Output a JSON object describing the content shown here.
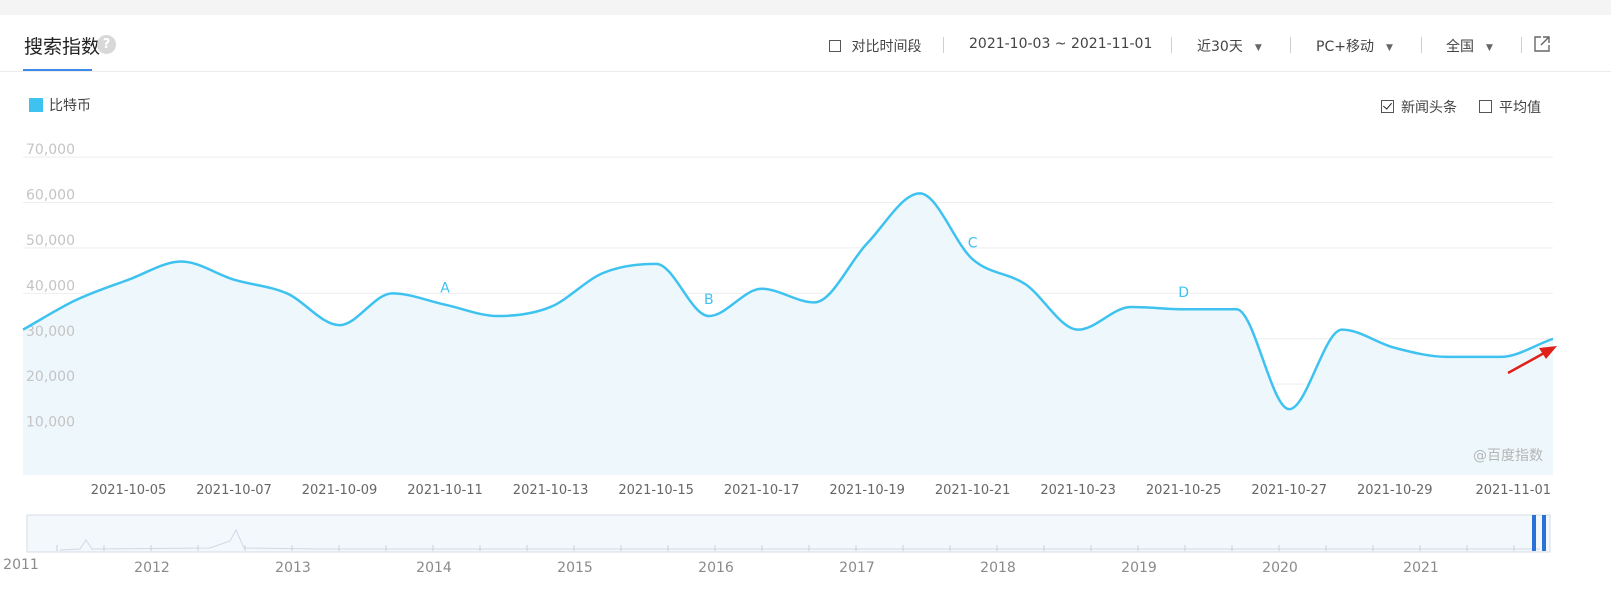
{
  "header": {
    "title": "搜索指数",
    "help_icon": "?",
    "compare_label": "对比时间段",
    "date_range": "2021-10-03 ~ 2021-11-01",
    "period_select": "近30天",
    "device_select": "PC+移动",
    "region_select": "全国"
  },
  "options": {
    "news_label": "新闻头条",
    "news_checked": true,
    "average_label": "平均值",
    "average_checked": false
  },
  "watermark": "@百度指数",
  "colors": {
    "series": "#3ec2f0",
    "accent": "#3f8be9",
    "arrow": "#e0201b"
  },
  "chart_data": {
    "type": "area",
    "series": [
      {
        "name": "比特币",
        "dates": [
          "2021-10-03",
          "2021-10-04",
          "2021-10-05",
          "2021-10-06",
          "2021-10-07",
          "2021-10-08",
          "2021-10-09",
          "2021-10-10",
          "2021-10-11",
          "2021-10-12",
          "2021-10-13",
          "2021-10-14",
          "2021-10-15",
          "2021-10-16",
          "2021-10-17",
          "2021-10-18",
          "2021-10-19",
          "2021-10-20",
          "2021-10-21",
          "2021-10-22",
          "2021-10-23",
          "2021-10-24",
          "2021-10-25",
          "2021-10-26",
          "2021-10-27",
          "2021-10-28",
          "2021-10-29",
          "2021-10-30",
          "2021-10-31",
          "2021-11-01"
        ],
        "values": [
          32000,
          38500,
          43000,
          47000,
          43000,
          40000,
          33000,
          40000,
          37500,
          35000,
          37000,
          44500,
          46500,
          35000,
          41000,
          38000,
          51000,
          62000,
          47500,
          42000,
          32000,
          37000,
          36500,
          36500,
          14500,
          32000,
          28000,
          26000,
          26000,
          30000
        ]
      }
    ],
    "x_tick_labels": [
      "2021-10-05",
      "2021-10-07",
      "2021-10-09",
      "2021-10-11",
      "2021-10-13",
      "2021-10-15",
      "2021-10-17",
      "2021-10-19",
      "2021-10-21",
      "2021-10-23",
      "2021-10-25",
      "2021-10-27",
      "2021-10-29",
      "2021-11-01"
    ],
    "y_tick_labels": [
      "10,000",
      "20,000",
      "30,000",
      "40,000",
      "50,000",
      "60,000",
      "70,000"
    ],
    "y_ticks": [
      10000,
      20000,
      30000,
      40000,
      50000,
      60000,
      70000
    ],
    "ylim": [
      0,
      72000
    ],
    "grid": true,
    "annotations": [
      {
        "label": "A",
        "date": "2021-10-11"
      },
      {
        "label": "B",
        "date": "2021-10-16"
      },
      {
        "label": "C",
        "date": "2021-10-21"
      },
      {
        "label": "D",
        "date": "2021-10-25"
      }
    ],
    "navigator_years": [
      "2011",
      "2012",
      "2013",
      "2014",
      "2015",
      "2016",
      "2017",
      "2018",
      "2019",
      "2020",
      "2021"
    ],
    "legend_position": "top-left"
  }
}
